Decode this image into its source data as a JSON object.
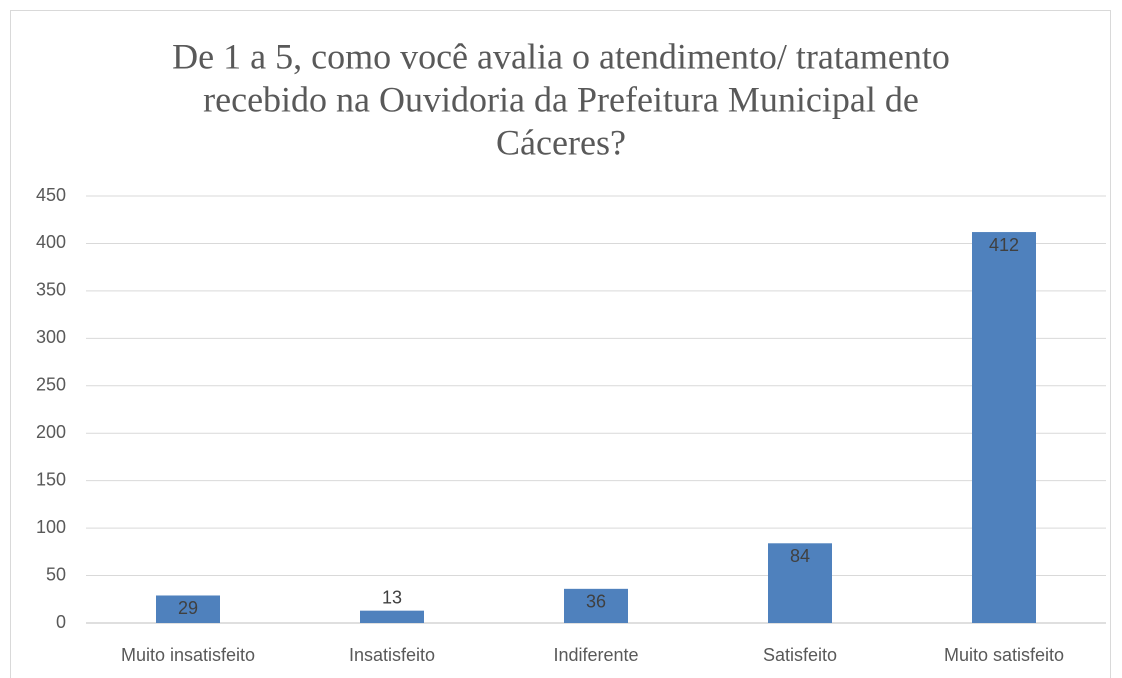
{
  "chart_data": {
    "type": "bar",
    "title": [
      "De 1 a 5, como você avalia o atendimento/ tratamento",
      "recebido na Ouvidoria da Prefeitura Municipal de",
      "Cáceres?"
    ],
    "categories": [
      "Muito insatisfeito",
      "Insatisfeito",
      "Indiferente",
      "Satisfeito",
      "Muito satisfeito"
    ],
    "values": [
      29,
      13,
      36,
      84,
      412
    ],
    "color": "#4f81bd",
    "ylim": [
      0,
      450
    ],
    "yticks": [
      0,
      50,
      100,
      150,
      200,
      250,
      300,
      350,
      400,
      450
    ],
    "grid": true
  }
}
